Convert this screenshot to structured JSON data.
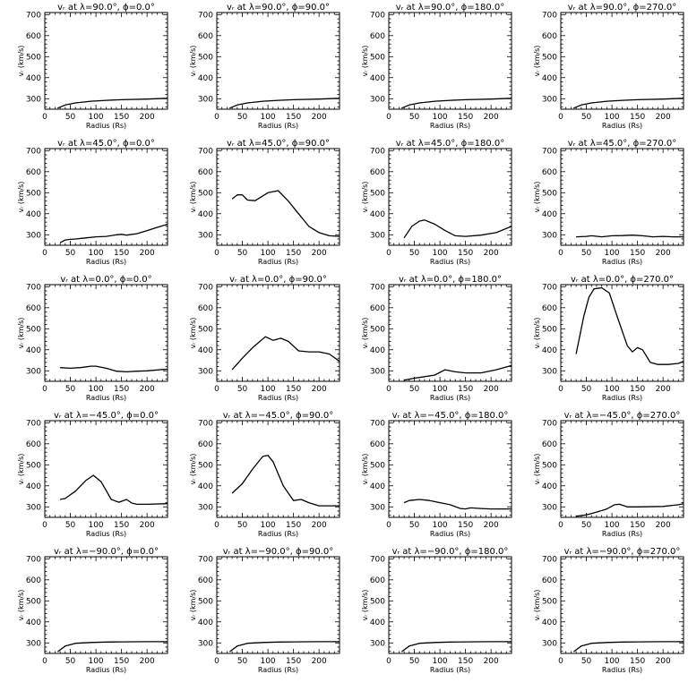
{
  "xlabel": "Radius (Rs)",
  "ylabel": "vᵣ (km/s)",
  "xlim": [
    0,
    240
  ],
  "ylim": [
    250,
    710
  ],
  "x_ticks": [
    0,
    50,
    100,
    150,
    200
  ],
  "y_ticks": [
    300,
    400,
    500,
    600,
    700
  ],
  "chart_data": [
    {
      "type": "line",
      "title": "vᵣ at λ=90.0°, ϕ=0.0°",
      "x": [
        25,
        40,
        60,
        90,
        120,
        150,
        200,
        240
      ],
      "y": [
        255,
        270,
        280,
        288,
        292,
        295,
        298,
        302
      ]
    },
    {
      "type": "line",
      "title": "vᵣ at λ=90.0°, ϕ=90.0°",
      "x": [
        25,
        40,
        60,
        90,
        120,
        150,
        200,
        240
      ],
      "y": [
        255,
        270,
        280,
        288,
        292,
        295,
        298,
        302
      ]
    },
    {
      "type": "line",
      "title": "vᵣ at λ=90.0°, ϕ=180.0°",
      "x": [
        25,
        40,
        60,
        90,
        120,
        150,
        200,
        240
      ],
      "y": [
        255,
        270,
        280,
        288,
        292,
        295,
        298,
        302
      ]
    },
    {
      "type": "line",
      "title": "vᵣ at λ=90.0°, ϕ=270.0°",
      "x": [
        25,
        40,
        60,
        90,
        120,
        150,
        200,
        240
      ],
      "y": [
        255,
        270,
        280,
        288,
        292,
        295,
        298,
        302
      ]
    },
    {
      "type": "line",
      "title": "vᵣ at λ=45.0°, ϕ=0.0°",
      "x": [
        30,
        40,
        50,
        60,
        80,
        100,
        120,
        140,
        150,
        160,
        180,
        200,
        220,
        240
      ],
      "y": [
        262,
        275,
        278,
        280,
        285,
        290,
        292,
        300,
        302,
        298,
        305,
        320,
        335,
        350
      ]
    },
    {
      "type": "line",
      "title": "vᵣ at λ=45.0°, ϕ=90.0°",
      "x": [
        30,
        40,
        50,
        60,
        75,
        100,
        120,
        140,
        160,
        180,
        200,
        220,
        240
      ],
      "y": [
        470,
        490,
        490,
        465,
        462,
        500,
        510,
        460,
        400,
        340,
        310,
        295,
        292
      ]
    },
    {
      "type": "line",
      "title": "vᵣ at λ=45.0°, ϕ=180.0°",
      "x": [
        30,
        45,
        60,
        70,
        90,
        110,
        130,
        150,
        180,
        210,
        240
      ],
      "y": [
        285,
        340,
        365,
        370,
        350,
        320,
        295,
        292,
        298,
        310,
        340
      ]
    },
    {
      "type": "line",
      "title": "vᵣ at λ=45.0°, ϕ=270.0°",
      "x": [
        30,
        50,
        60,
        80,
        100,
        120,
        140,
        160,
        180,
        200,
        220,
        240
      ],
      "y": [
        290,
        292,
        295,
        290,
        295,
        296,
        298,
        295,
        290,
        292,
        290,
        290
      ]
    },
    {
      "type": "line",
      "title": "vᵣ at λ=0.0°, ϕ=0.0°",
      "x": [
        30,
        50,
        70,
        90,
        100,
        120,
        140,
        160,
        180,
        200,
        240
      ],
      "y": [
        315,
        312,
        315,
        322,
        322,
        312,
        298,
        295,
        298,
        300,
        308
      ]
    },
    {
      "type": "line",
      "title": "vᵣ at λ=0.0°, ϕ=90.0°",
      "x": [
        30,
        50,
        70,
        95,
        110,
        125,
        140,
        160,
        180,
        200,
        220,
        240
      ],
      "y": [
        305,
        360,
        410,
        462,
        445,
        455,
        440,
        395,
        390,
        390,
        380,
        345
      ]
    },
    {
      "type": "line",
      "title": "vᵣ at λ=0.0°, ϕ=180.0°",
      "x": [
        30,
        50,
        70,
        90,
        110,
        130,
        150,
        180,
        210,
        240
      ],
      "y": [
        255,
        265,
        272,
        280,
        305,
        295,
        290,
        290,
        305,
        325
      ]
    },
    {
      "type": "line",
      "title": "vᵣ at λ=0.0°, ϕ=270.0°",
      "x": [
        30,
        45,
        55,
        65,
        80,
        95,
        110,
        130,
        140,
        150,
        160,
        175,
        190,
        210,
        230,
        240
      ],
      "y": [
        380,
        560,
        650,
        690,
        695,
        670,
        560,
        420,
        390,
        410,
        400,
        340,
        330,
        330,
        335,
        345
      ]
    },
    {
      "type": "line",
      "title": "vᵣ at λ=−45.0°, ϕ=0.0°",
      "x": [
        30,
        40,
        60,
        80,
        95,
        110,
        130,
        145,
        160,
        170,
        180,
        200,
        240
      ],
      "y": [
        335,
        340,
        375,
        425,
        450,
        420,
        335,
        322,
        335,
        318,
        312,
        312,
        315
      ]
    },
    {
      "type": "line",
      "title": "vᵣ at λ=−45.0°, ϕ=90.0°",
      "x": [
        30,
        50,
        70,
        90,
        100,
        110,
        130,
        150,
        165,
        180,
        200,
        240
      ],
      "y": [
        365,
        410,
        480,
        540,
        545,
        515,
        400,
        330,
        335,
        320,
        305,
        305
      ]
    },
    {
      "type": "line",
      "title": "vᵣ at λ=−45.0°, ϕ=180.0°",
      "x": [
        30,
        40,
        60,
        80,
        100,
        120,
        140,
        150,
        160,
        180,
        200,
        240
      ],
      "y": [
        320,
        330,
        335,
        330,
        320,
        310,
        292,
        290,
        295,
        292,
        290,
        290
      ]
    },
    {
      "type": "line",
      "title": "vᵣ at λ=−45.0°, ϕ=270.0°",
      "x": [
        30,
        50,
        70,
        90,
        105,
        115,
        130,
        150,
        200,
        230,
        240
      ],
      "y": [
        255,
        262,
        275,
        290,
        310,
        312,
        300,
        300,
        302,
        310,
        315
      ]
    },
    {
      "type": "line",
      "title": "vᵣ at λ=−90.0°, ϕ=0.0°",
      "x": [
        25,
        40,
        60,
        90,
        120,
        150,
        200,
        240
      ],
      "y": [
        258,
        285,
        298,
        302,
        304,
        305,
        306,
        306
      ]
    },
    {
      "type": "line",
      "title": "vᵣ at λ=−90.0°, ϕ=90.0°",
      "x": [
        25,
        40,
        60,
        90,
        120,
        150,
        200,
        240
      ],
      "y": [
        258,
        285,
        298,
        302,
        304,
        305,
        306,
        306
      ]
    },
    {
      "type": "line",
      "title": "vᵣ at λ=−90.0°, ϕ=180.0°",
      "x": [
        25,
        40,
        60,
        90,
        120,
        150,
        200,
        240
      ],
      "y": [
        258,
        285,
        298,
        302,
        304,
        305,
        306,
        306
      ]
    },
    {
      "type": "line",
      "title": "vᵣ at λ=−90.0°, ϕ=270.0°",
      "x": [
        25,
        40,
        60,
        90,
        120,
        150,
        200,
        240
      ],
      "y": [
        258,
        285,
        298,
        302,
        304,
        305,
        306,
        306
      ]
    }
  ]
}
